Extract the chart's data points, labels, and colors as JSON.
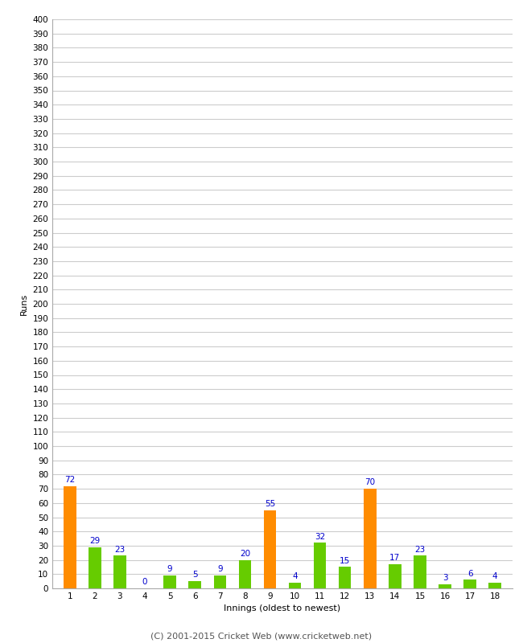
{
  "innings": [
    1,
    2,
    3,
    4,
    5,
    6,
    7,
    8,
    9,
    10,
    11,
    12,
    13,
    14,
    15,
    16,
    17,
    18
  ],
  "runs": [
    72,
    29,
    23,
    0,
    9,
    5,
    9,
    20,
    55,
    4,
    32,
    15,
    70,
    17,
    23,
    3,
    6,
    4
  ],
  "bar_colors": [
    "#ff8c00",
    "#66cc00",
    "#66cc00",
    "#66cc00",
    "#66cc00",
    "#66cc00",
    "#66cc00",
    "#66cc00",
    "#ff8c00",
    "#66cc00",
    "#66cc00",
    "#66cc00",
    "#ff8c00",
    "#66cc00",
    "#66cc00",
    "#66cc00",
    "#66cc00",
    "#66cc00"
  ],
  "xlabel": "Innings (oldest to newest)",
  "ylabel": "Runs",
  "ylim": [
    0,
    400
  ],
  "yticks": [
    0,
    10,
    20,
    30,
    40,
    50,
    60,
    70,
    80,
    90,
    100,
    110,
    120,
    130,
    140,
    150,
    160,
    170,
    180,
    190,
    200,
    210,
    220,
    230,
    240,
    250,
    260,
    270,
    280,
    290,
    300,
    310,
    320,
    330,
    340,
    350,
    360,
    370,
    380,
    390,
    400
  ],
  "footer": "(C) 2001-2015 Cricket Web (www.cricketweb.net)",
  "value_label_color": "#0000cc",
  "background_color": "#ffffff",
  "grid_color": "#cccccc",
  "bar_width": 0.5,
  "tick_fontsize": 7.5,
  "label_fontsize": 8,
  "footer_fontsize": 8
}
